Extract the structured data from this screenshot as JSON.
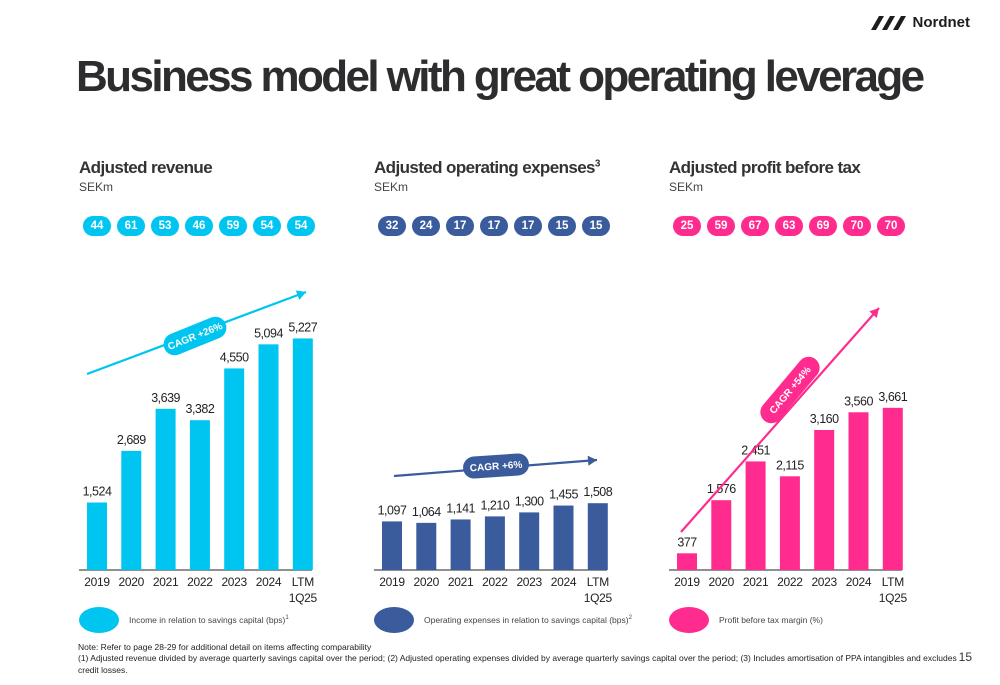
{
  "brand": {
    "name": "Nordnet"
  },
  "title": "Business model with great operating leverage",
  "footnote": {
    "note": "Note: Refer to page 28-29 for additional detail on items affecting comparability",
    "detail": " (1) Adjusted revenue divided by average quarterly savings capital over the period; (2) Adjusted operating expenses divided by average quarterly savings capital over the period; (3) Includes amortisation of PPA intangibles and excludes credit losses."
  },
  "page_number": "15",
  "panels": [
    {
      "title": "Adjusted revenue",
      "title_sup": "",
      "unit": "SEKm",
      "color": "#00c5f0",
      "badges": [
        "44",
        "61",
        "53",
        "46",
        "59",
        "54",
        "54"
      ],
      "legend": "Income in relation to savings capital (bps)",
      "legend_sup": "1",
      "cagr": "CAGR +26%"
    },
    {
      "title": "Adjusted operating expenses",
      "title_sup": "3",
      "unit": "SEKm",
      "color": "#3a5c9c",
      "badges": [
        "32",
        "24",
        "17",
        "17",
        "17",
        "15",
        "15"
      ],
      "legend": "Operating expenses in relation to savings capital (bps)",
      "legend_sup": "2",
      "cagr": "CAGR +6%"
    },
    {
      "title": "Adjusted profit before tax",
      "title_sup": "",
      "unit": "SEKm",
      "color": "#ff2b8e",
      "badges": [
        "25",
        "59",
        "67",
        "63",
        "69",
        "70",
        "70"
      ],
      "legend": "Profit before tax margin (%)",
      "legend_sup": "",
      "cagr": "CAGR +54%"
    }
  ],
  "chart_data": [
    {
      "type": "bar",
      "title": "Adjusted revenue",
      "ylabel": "SEKm",
      "categories": [
        "2019",
        "2020",
        "2021",
        "2022",
        "2023",
        "2024",
        "LTM\n1Q25"
      ],
      "values": [
        1524,
        2689,
        3639,
        3382,
        4550,
        5094,
        5227
      ],
      "data_labels": [
        "1,524",
        "2,689",
        "3,639",
        "3,382",
        "4,550",
        "5,094",
        "5,227"
      ],
      "annotation": "CAGR +26%",
      "grid": false
    },
    {
      "type": "bar",
      "title": "Adjusted operating expenses",
      "ylabel": "SEKm",
      "categories": [
        "2019",
        "2020",
        "2021",
        "2022",
        "2023",
        "2024",
        "LTM\n1Q25"
      ],
      "values": [
        1097,
        1064,
        1141,
        1210,
        1300,
        1455,
        1508
      ],
      "data_labels": [
        "1,097",
        "1,064",
        "1,141",
        "1,210",
        "1,300",
        "1,455",
        "1,508"
      ],
      "annotation": "CAGR +6%",
      "grid": false
    },
    {
      "type": "bar",
      "title": "Adjusted profit before tax",
      "ylabel": "SEKm",
      "categories": [
        "2019",
        "2020",
        "2021",
        "2022",
        "2023",
        "2024",
        "LTM\n1Q25"
      ],
      "values": [
        377,
        1576,
        2451,
        2115,
        3160,
        3560,
        3661
      ],
      "data_labels": [
        "377",
        "1,576",
        "2,451",
        "2,115",
        "3,160",
        "3,560",
        "3,661"
      ],
      "annotation": "CAGR +54%",
      "grid": false
    }
  ]
}
